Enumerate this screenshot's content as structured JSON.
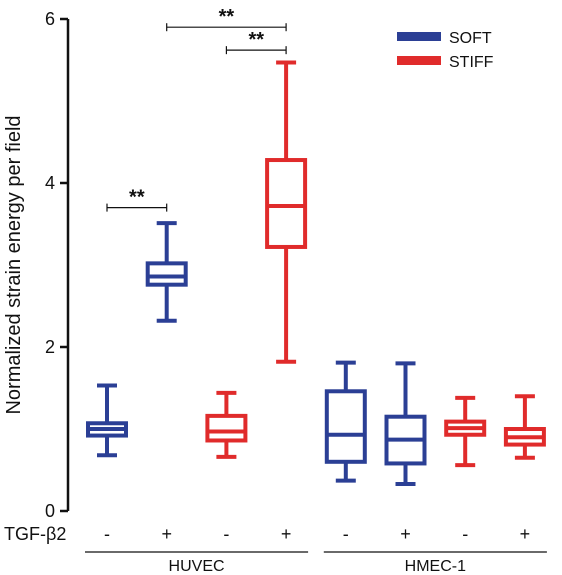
{
  "chart_data": {
    "type": "box",
    "ylabel": "Normalized strain energy per field",
    "ylim": [
      0,
      6
    ],
    "yticks": [
      "0",
      "2",
      "4",
      "6"
    ],
    "legend": {
      "placement": "top-right",
      "entries": [
        {
          "name": "SOFT",
          "color": "#2b3f95"
        },
        {
          "name": "STIFF",
          "color": "#e02b2b"
        }
      ]
    },
    "condition_label": "TGF-β2",
    "conditions": [
      "-",
      "+",
      "-",
      "+",
      "-",
      "+",
      "-",
      "+"
    ],
    "groups": [
      {
        "name": "HUVEC",
        "from": 0,
        "to": 3
      },
      {
        "name": "HMEC-1",
        "from": 4,
        "to": 7
      }
    ],
    "boxes": [
      {
        "series": "SOFT",
        "min": 0.68,
        "q1": 0.92,
        "median": 1.0,
        "q3": 1.07,
        "max": 1.53
      },
      {
        "series": "SOFT",
        "min": 2.32,
        "q1": 2.76,
        "median": 2.86,
        "q3": 3.02,
        "max": 3.51
      },
      {
        "series": "STIFF",
        "min": 0.66,
        "q1": 0.86,
        "median": 0.97,
        "q3": 1.16,
        "max": 1.44
      },
      {
        "series": "STIFF",
        "min": 1.82,
        "q1": 3.22,
        "median": 3.72,
        "q3": 4.28,
        "max": 5.47
      },
      {
        "series": "SOFT",
        "min": 0.37,
        "q1": 0.6,
        "median": 0.93,
        "q3": 1.46,
        "max": 1.81
      },
      {
        "series": "SOFT",
        "min": 0.33,
        "q1": 0.58,
        "median": 0.87,
        "q3": 1.15,
        "max": 1.8
      },
      {
        "series": "STIFF",
        "min": 0.56,
        "q1": 0.93,
        "median": 1.01,
        "q3": 1.09,
        "max": 1.38
      },
      {
        "series": "STIFF",
        "min": 0.65,
        "q1": 0.81,
        "median": 0.9,
        "q3": 1.0,
        "max": 1.4
      }
    ],
    "significance": [
      {
        "from": 0,
        "to": 1,
        "y": 3.7,
        "label": "**"
      },
      {
        "from": 1,
        "to": 3,
        "y": 5.9,
        "label": "**"
      },
      {
        "from": 2,
        "to": 3,
        "y": 5.62,
        "label": "**"
      }
    ]
  }
}
